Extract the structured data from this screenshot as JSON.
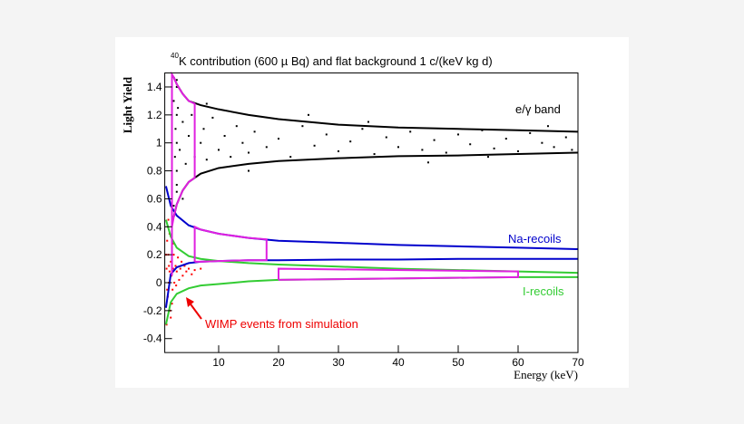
{
  "chart_data": {
    "type": "scatter",
    "title_superscript": "40",
    "title": "K contribution (600 µ Bq) and flat background 1 c/(keV kg d)",
    "x_label": "Energy (keV)",
    "y_label": "Light Yield",
    "xlim": [
      1,
      70
    ],
    "ylim": [
      -0.5,
      1.5
    ],
    "xticks": [
      10,
      20,
      30,
      40,
      50,
      60,
      70
    ],
    "yticks": [
      -0.4,
      -0.2,
      0,
      0.2,
      0.4,
      0.6,
      0.8,
      1,
      1.2,
      1.4
    ],
    "annotations": [
      "e/γ  band",
      "Na-recoils",
      "I-recoils",
      "WIMP events from simulation"
    ],
    "series": [
      {
        "type": "scatter",
        "color": "#000000",
        "x": [
          2.5,
          2.7,
          2.8,
          3,
          3,
          3.2,
          3.5,
          4,
          4.5,
          5,
          5.5,
          6,
          7,
          7.5,
          8,
          9,
          10,
          11,
          12,
          13,
          14,
          15,
          16,
          18,
          20,
          22,
          24,
          26,
          28,
          30,
          32,
          34,
          36,
          38,
          40,
          42,
          44,
          46,
          48,
          50,
          52,
          54,
          56,
          58,
          60,
          62,
          64,
          66,
          68,
          69,
          3,
          4,
          2.5,
          3,
          3,
          3,
          3,
          8,
          25,
          45,
          65,
          35,
          15,
          55
        ],
        "values": [
          1.3,
          0.9,
          1.1,
          1.0,
          0.7,
          1.25,
          0.95,
          1.15,
          0.85,
          1.05,
          1.2,
          0.9,
          1.0,
          1.1,
          0.88,
          1.18,
          0.95,
          1.05,
          0.9,
          1.12,
          1.0,
          0.93,
          1.08,
          0.97,
          1.03,
          0.9,
          1.12,
          0.98,
          1.06,
          0.94,
          1.01,
          1.1,
          0.92,
          1.04,
          0.97,
          1.08,
          0.95,
          1.02,
          0.93,
          1.06,
          0.99,
          1.09,
          0.96,
          1.03,
          0.94,
          1.07,
          1.0,
          0.97,
          1.04,
          0.95,
          1.45,
          0.6,
          0.55,
          1.4,
          1.2,
          0.8,
          0.65,
          1.28,
          1.2,
          0.86,
          1.12,
          1.15,
          0.8,
          0.9
        ]
      },
      {
        "type": "scatter",
        "color": "#ff0000",
        "x": [
          1.3,
          1.4,
          1.5,
          1.6,
          1.7,
          1.8,
          1.9,
          2,
          2.1,
          2.2,
          2.3,
          2.4,
          2.5,
          2.6,
          2.8,
          3,
          3.2,
          3.4,
          3.6,
          3.8,
          4,
          4.3,
          4.6,
          5,
          5.5,
          6,
          1.5,
          1.3,
          2,
          1.6,
          2.2,
          7,
          1.4,
          1.8,
          2.4,
          2.9,
          1.2,
          1.7
        ],
        "values": [
          0.1,
          0.3,
          -0.1,
          0.2,
          0.0,
          0.35,
          -0.2,
          0.15,
          0.05,
          0.25,
          -0.05,
          0.1,
          0.2,
          0.0,
          0.12,
          0.08,
          0.18,
          0.02,
          0.1,
          0.15,
          0.05,
          0.12,
          0.08,
          0.1,
          0.06,
          0.09,
          0.4,
          -0.3,
          -0.25,
          0.45,
          -0.15,
          0.1,
          -0.05,
          0.08,
          0.28,
          -0.02,
          0.2,
          0.12
        ]
      },
      {
        "type": "line",
        "color": "#000000",
        "x": [
          2.5,
          3,
          4,
          5,
          7,
          10,
          15,
          20,
          30,
          40,
          50,
          60,
          70
        ],
        "values": [
          1.47,
          1.42,
          1.35,
          1.3,
          1.27,
          1.24,
          1.2,
          1.17,
          1.13,
          1.11,
          1.1,
          1.09,
          1.08
        ]
      },
      {
        "type": "line",
        "color": "#000000",
        "x": [
          2.5,
          3,
          4,
          5,
          7,
          10,
          15,
          20,
          30,
          40,
          50,
          60,
          70
        ],
        "values": [
          0.47,
          0.56,
          0.66,
          0.72,
          0.78,
          0.82,
          0.85,
          0.87,
          0.89,
          0.905,
          0.91,
          0.92,
          0.93
        ]
      },
      {
        "type": "line",
        "color": "#0000cc",
        "x": [
          1.2,
          2,
          3,
          5,
          7,
          10,
          15,
          20,
          30,
          40,
          50,
          60,
          70
        ],
        "values": [
          0.69,
          0.55,
          0.48,
          0.41,
          0.38,
          0.35,
          0.32,
          0.3,
          0.285,
          0.27,
          0.26,
          0.25,
          0.24
        ]
      },
      {
        "type": "line",
        "color": "#0000cc",
        "x": [
          1.2,
          2,
          3,
          5,
          7,
          10,
          15,
          20,
          30,
          40,
          50,
          60,
          70
        ],
        "values": [
          -0.18,
          0.06,
          0.11,
          0.14,
          0.15,
          0.155,
          0.16,
          0.16,
          0.165,
          0.165,
          0.17,
          0.17,
          0.17
        ]
      },
      {
        "type": "line",
        "color": "#33cc33",
        "x": [
          1.2,
          2,
          3,
          5,
          7,
          10,
          15,
          20,
          30,
          40,
          50,
          60,
          70
        ],
        "values": [
          0.45,
          0.33,
          0.25,
          0.19,
          0.17,
          0.155,
          0.14,
          0.13,
          0.115,
          0.1,
          0.09,
          0.08,
          0.07
        ]
      },
      {
        "type": "line",
        "color": "#33cc33",
        "x": [
          1.2,
          2,
          3,
          5,
          7,
          10,
          15,
          20,
          30,
          40,
          50,
          60,
          70
        ],
        "values": [
          -0.3,
          -0.14,
          -0.08,
          -0.04,
          -0.02,
          -0.01,
          0.01,
          0.02,
          0.025,
          0.03,
          0.035,
          0.04,
          0.04
        ]
      },
      {
        "type": "line",
        "color": "#e020e0",
        "x": [
          2.2,
          2.2,
          2.5,
          3,
          4,
          5,
          6,
          6,
          5,
          4,
          3,
          2.5,
          2.2
        ],
        "values": [
          0.05,
          1.49,
          1.47,
          1.42,
          1.35,
          1.3,
          1.28,
          0.75,
          0.72,
          0.66,
          0.56,
          0.47,
          0.4
        ]
      },
      {
        "type": "line",
        "color": "#e020e0",
        "x": [
          6,
          6,
          7,
          10,
          15,
          18,
          18,
          15,
          10,
          7,
          6
        ],
        "values": [
          0.15,
          0.4,
          0.38,
          0.35,
          0.32,
          0.31,
          0.16,
          0.16,
          0.155,
          0.15,
          0.15
        ]
      },
      {
        "type": "line",
        "color": "#e020e0",
        "x": [
          20,
          20,
          60,
          60,
          20
        ],
        "values": [
          0.02,
          0.1,
          0.08,
          0.04,
          0.02
        ]
      }
    ]
  }
}
